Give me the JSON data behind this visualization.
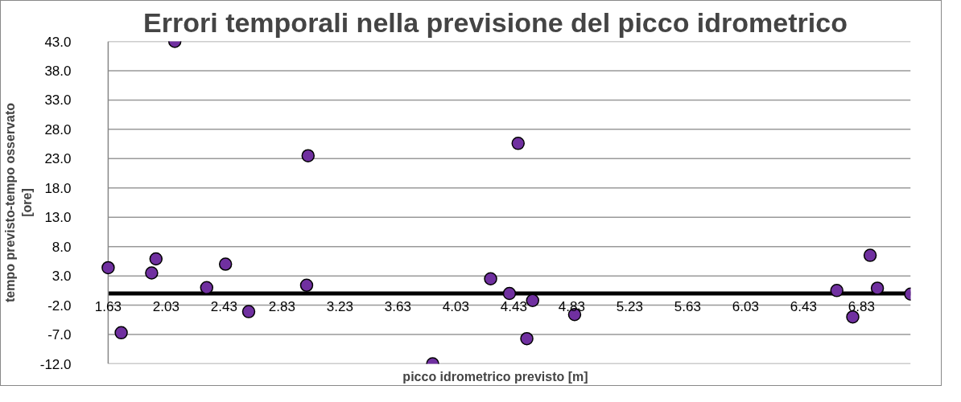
{
  "chart_data": {
    "type": "scatter",
    "title": "Errori temporali nella previsione del picco idrometrico",
    "xlabel": "picco idrometrico previsto [m]",
    "ylabel": "tempo previsto-tempo osservato [ore]",
    "x": [
      1.63,
      1.72,
      1.93,
      1.96,
      2.09,
      2.31,
      2.44,
      2.6,
      3.01,
      3.0,
      3.87,
      4.27,
      4.4,
      4.46,
      4.52,
      4.56,
      4.85,
      6.66,
      6.77,
      6.89,
      6.94,
      7.17
    ],
    "series": [
      {
        "color": "#7030a0",
        "values": [
          4.4,
          -6.7,
          3.5,
          5.9,
          43.0,
          1.0,
          5.0,
          -3.1,
          23.5,
          1.4,
          -12.0,
          2.5,
          0.0,
          25.6,
          -7.7,
          -1.2,
          -3.6,
          0.5,
          -4.0,
          6.5,
          0.9,
          -0.1
        ]
      }
    ],
    "xlim": [
      1.63,
      7.17
    ],
    "xticks": [
      1.63,
      2.03,
      2.43,
      2.83,
      3.23,
      3.63,
      4.03,
      4.43,
      4.83,
      5.23,
      5.63,
      6.03,
      6.43,
      6.83
    ],
    "ylim": [
      -12,
      43
    ],
    "yticks": [
      {
        "value": -12,
        "label": "-12.0"
      },
      {
        "value": -7,
        "label": "-7.0"
      },
      {
        "value": -2,
        "label": "-2.0"
      },
      {
        "value": 3,
        "label": "3.0"
      },
      {
        "value": 8,
        "label": "8.0"
      },
      {
        "value": 13,
        "label": "13.0"
      },
      {
        "value": 18,
        "label": "18.0"
      },
      {
        "value": 23,
        "label": "23.0"
      },
      {
        "value": 28,
        "label": "28.0"
      },
      {
        "value": 33,
        "label": "33.0"
      },
      {
        "value": 38,
        "label": "38.0"
      },
      {
        "value": 43,
        "label": "43.0"
      }
    ],
    "grid": "y",
    "marker": "circle"
  }
}
